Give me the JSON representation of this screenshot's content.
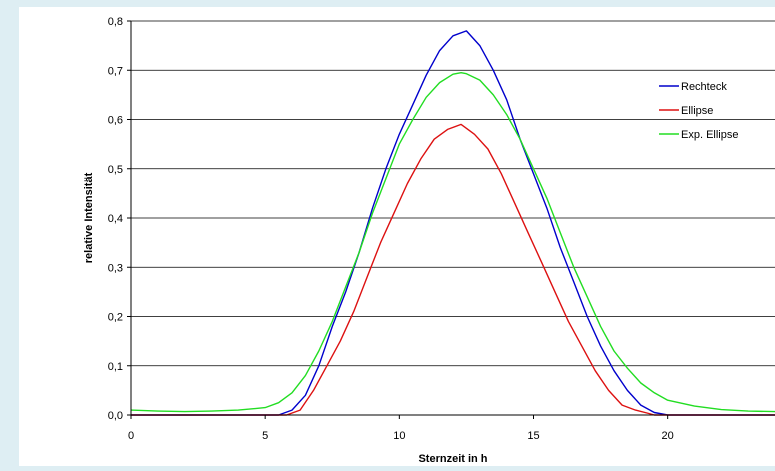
{
  "colors": {
    "page_background": "#deeef3",
    "plot_background": "#ffffff",
    "gridline": "#000000",
    "rechteck": "#0000cc",
    "ellipse": "#dd1111",
    "exp_ellipse": "#22dd22"
  },
  "chart_data": {
    "type": "line",
    "title": "",
    "xlabel": "Sternzeit in h",
    "ylabel": "relative Intensität",
    "xlim": [
      0,
      24
    ],
    "ylim": [
      0,
      0.8
    ],
    "x_ticks": [
      0,
      5,
      10,
      15,
      20
    ],
    "x_tick_labels": [
      "0",
      "5",
      "10",
      "15",
      "20"
    ],
    "y_ticks": [
      0,
      0.1,
      0.2,
      0.3,
      0.4,
      0.5,
      0.6,
      0.7,
      0.8
    ],
    "y_tick_labels": [
      "0,0",
      "0,1",
      "0,2",
      "0,3",
      "0,4",
      "0,5",
      "0,6",
      "0,7",
      "0,8"
    ],
    "grid": "horizontal",
    "legend_position": "top-right",
    "series": [
      {
        "name": "Rechteck",
        "color": "#0000cc",
        "x": [
          0,
          5.5,
          6,
          6.5,
          7,
          7.5,
          8,
          8.5,
          9,
          9.5,
          10,
          10.5,
          11,
          11.5,
          12,
          12.5,
          13,
          13.5,
          14,
          14.5,
          15,
          15.5,
          16,
          16.5,
          17,
          17.5,
          18,
          18.5,
          19,
          19.5,
          20,
          24
        ],
        "y": [
          0,
          0,
          0.01,
          0.04,
          0.1,
          0.18,
          0.25,
          0.33,
          0.42,
          0.5,
          0.57,
          0.63,
          0.69,
          0.74,
          0.77,
          0.78,
          0.75,
          0.7,
          0.64,
          0.56,
          0.49,
          0.42,
          0.34,
          0.27,
          0.2,
          0.14,
          0.09,
          0.05,
          0.02,
          0.005,
          0,
          0
        ]
      },
      {
        "name": "Ellipse",
        "color": "#dd1111",
        "x": [
          0,
          5.8,
          6.3,
          6.8,
          7.3,
          7.8,
          8.3,
          8.8,
          9.3,
          9.8,
          10.3,
          10.8,
          11.3,
          11.8,
          12.3,
          12.8,
          13.3,
          13.8,
          14.3,
          14.8,
          15.3,
          15.8,
          16.3,
          16.8,
          17.3,
          17.8,
          18.3,
          18.8,
          19.3,
          19.5,
          24
        ],
        "y": [
          0,
          0,
          0.01,
          0.05,
          0.1,
          0.15,
          0.21,
          0.28,
          0.35,
          0.41,
          0.47,
          0.52,
          0.56,
          0.58,
          0.59,
          0.57,
          0.54,
          0.49,
          0.43,
          0.37,
          0.31,
          0.25,
          0.19,
          0.14,
          0.09,
          0.05,
          0.02,
          0.01,
          0.003,
          0,
          0
        ]
      },
      {
        "name": "Exp. Ellipse",
        "color": "#22dd22",
        "x": [
          0,
          1,
          2,
          3,
          4,
          5,
          5.5,
          6,
          6.5,
          7,
          7.5,
          8,
          8.5,
          9,
          9.5,
          10,
          10.5,
          11,
          11.5,
          12,
          12.3,
          12.5,
          13,
          13.5,
          14,
          14.5,
          15,
          15.5,
          16,
          16.5,
          17,
          17.5,
          18,
          18.5,
          19,
          19.5,
          20,
          21,
          22,
          23,
          24
        ],
        "y": [
          0.01,
          0.008,
          0.007,
          0.008,
          0.01,
          0.015,
          0.025,
          0.045,
          0.08,
          0.13,
          0.19,
          0.26,
          0.33,
          0.41,
          0.48,
          0.55,
          0.6,
          0.645,
          0.675,
          0.692,
          0.695,
          0.693,
          0.68,
          0.65,
          0.61,
          0.56,
          0.5,
          0.44,
          0.37,
          0.3,
          0.24,
          0.18,
          0.13,
          0.095,
          0.065,
          0.045,
          0.03,
          0.018,
          0.011,
          0.008,
          0.007
        ]
      }
    ]
  }
}
